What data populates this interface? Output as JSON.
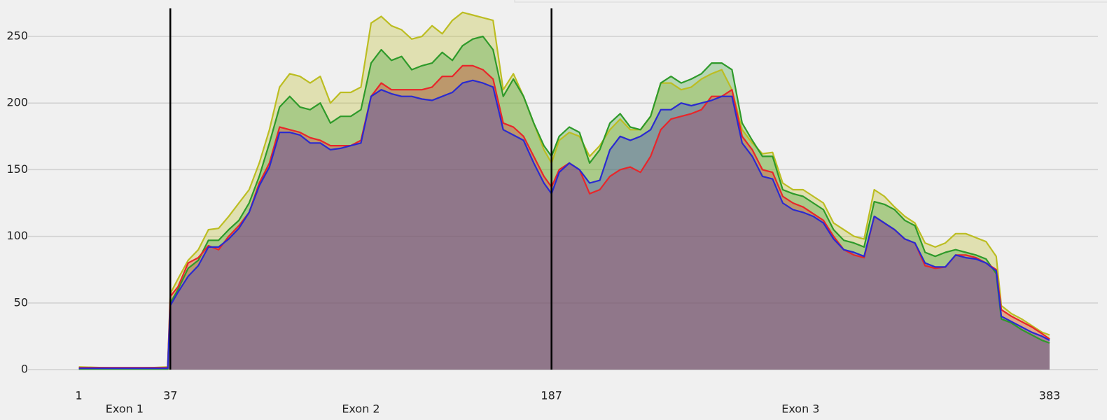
{
  "chart_data": {
    "type": "area",
    "x": [
      1,
      10,
      20,
      30,
      36,
      37,
      40,
      44,
      48,
      52,
      56,
      60,
      64,
      68,
      72,
      76,
      80,
      84,
      88,
      92,
      96,
      100,
      104,
      108,
      112,
      116,
      120,
      124,
      128,
      132,
      136,
      140,
      144,
      148,
      152,
      156,
      160,
      164,
      168,
      172,
      176,
      180,
      184,
      187,
      190,
      194,
      198,
      202,
      206,
      210,
      214,
      218,
      222,
      226,
      230,
      234,
      238,
      242,
      246,
      250,
      254,
      258,
      262,
      266,
      270,
      274,
      278,
      282,
      286,
      290,
      294,
      298,
      302,
      306,
      310,
      314,
      318,
      322,
      326,
      330,
      334,
      338,
      342,
      346,
      350,
      354,
      358,
      362,
      364,
      368,
      372,
      376,
      380,
      383
    ],
    "series": [
      {
        "color": "#bcbd22",
        "values": [
          2,
          1.5,
          1,
          1.5,
          2,
          57,
          68,
          82,
          90,
          105,
          106,
          115,
          125,
          135,
          155,
          180,
          212,
          222,
          220,
          215,
          220,
          200,
          208,
          208,
          212,
          260,
          265,
          258,
          255,
          248,
          250,
          258,
          252,
          262,
          268,
          266,
          264,
          262,
          210,
          222,
          205,
          185,
          165,
          155,
          172,
          178,
          175,
          160,
          168,
          180,
          188,
          180,
          180,
          190,
          215,
          215,
          210,
          212,
          218,
          222,
          225,
          210,
          180,
          170,
          162,
          163,
          140,
          135,
          135,
          130,
          125,
          110,
          105,
          100,
          98,
          135,
          130,
          122,
          115,
          110,
          95,
          92,
          95,
          102,
          102,
          99,
          96,
          85,
          48,
          42,
          38,
          33,
          28,
          26
        ]
      },
      {
        "color": "#2e9a2a",
        "values": [
          0.5,
          0.5,
          0.5,
          0.5,
          0.5,
          50,
          60,
          76,
          82,
          97,
          97,
          105,
          112,
          125,
          145,
          170,
          197,
          205,
          197,
          195,
          200,
          185,
          190,
          190,
          195,
          230,
          240,
          232,
          235,
          225,
          228,
          230,
          238,
          232,
          243,
          248,
          250,
          240,
          205,
          218,
          205,
          185,
          168,
          160,
          175,
          182,
          178,
          155,
          165,
          185,
          192,
          182,
          180,
          190,
          215,
          220,
          215,
          218,
          222,
          230,
          230,
          225,
          185,
          172,
          160,
          160,
          135,
          132,
          130,
          125,
          120,
          105,
          97,
          95,
          92,
          126,
          124,
          120,
          112,
          108,
          88,
          85,
          88,
          90,
          88,
          86,
          83,
          72,
          38,
          35,
          30,
          26,
          22,
          20
        ]
      },
      {
        "color": "#e8262a",
        "values": [
          1.5,
          1.5,
          1.5,
          1.5,
          1.5,
          55,
          62,
          80,
          84,
          93,
          90,
          100,
          108,
          118,
          140,
          155,
          182,
          180,
          178,
          174,
          172,
          168,
          168,
          168,
          172,
          205,
          215,
          210,
          210,
          210,
          210,
          212,
          220,
          220,
          228,
          228,
          225,
          218,
          185,
          182,
          175,
          160,
          145,
          137,
          150,
          155,
          150,
          132,
          135,
          145,
          150,
          152,
          148,
          160,
          180,
          188,
          190,
          192,
          195,
          205,
          205,
          210,
          175,
          165,
          150,
          148,
          130,
          125,
          122,
          117,
          112,
          100,
          90,
          86,
          84,
          115,
          110,
          105,
          98,
          95,
          78,
          76,
          77,
          86,
          86,
          84,
          80,
          75,
          45,
          40,
          36,
          32,
          27,
          23
        ]
      },
      {
        "color": "#2a2ad0",
        "values": [
          1,
          1,
          1,
          1,
          1,
          48,
          58,
          70,
          78,
          92,
          92,
          98,
          106,
          118,
          138,
          152,
          178,
          178,
          176,
          170,
          170,
          165,
          166,
          168,
          170,
          205,
          210,
          207,
          205,
          205,
          203,
          202,
          205,
          208,
          215,
          217,
          215,
          212,
          180,
          176,
          172,
          155,
          140,
          132,
          148,
          155,
          150,
          140,
          142,
          165,
          175,
          172,
          175,
          180,
          195,
          195,
          200,
          198,
          200,
          202,
          205,
          205,
          170,
          160,
          145,
          143,
          125,
          120,
          118,
          115,
          110,
          98,
          90,
          88,
          85,
          115,
          110,
          105,
          98,
          95,
          80,
          77,
          77,
          86,
          84,
          83,
          80,
          74,
          40,
          36,
          32,
          28,
          25,
          22
        ]
      }
    ],
    "xlim": [
      -19,
      402
    ],
    "xticks": [
      1,
      37,
      187,
      383
    ],
    "ylim": [
      -11,
      271
    ],
    "yticks": [
      0,
      50,
      100,
      150,
      200,
      250
    ],
    "grid": true,
    "vlines": [
      37,
      187
    ],
    "annotations": [
      "Exon 1",
      "Exon 2",
      "Exon 3"
    ]
  }
}
